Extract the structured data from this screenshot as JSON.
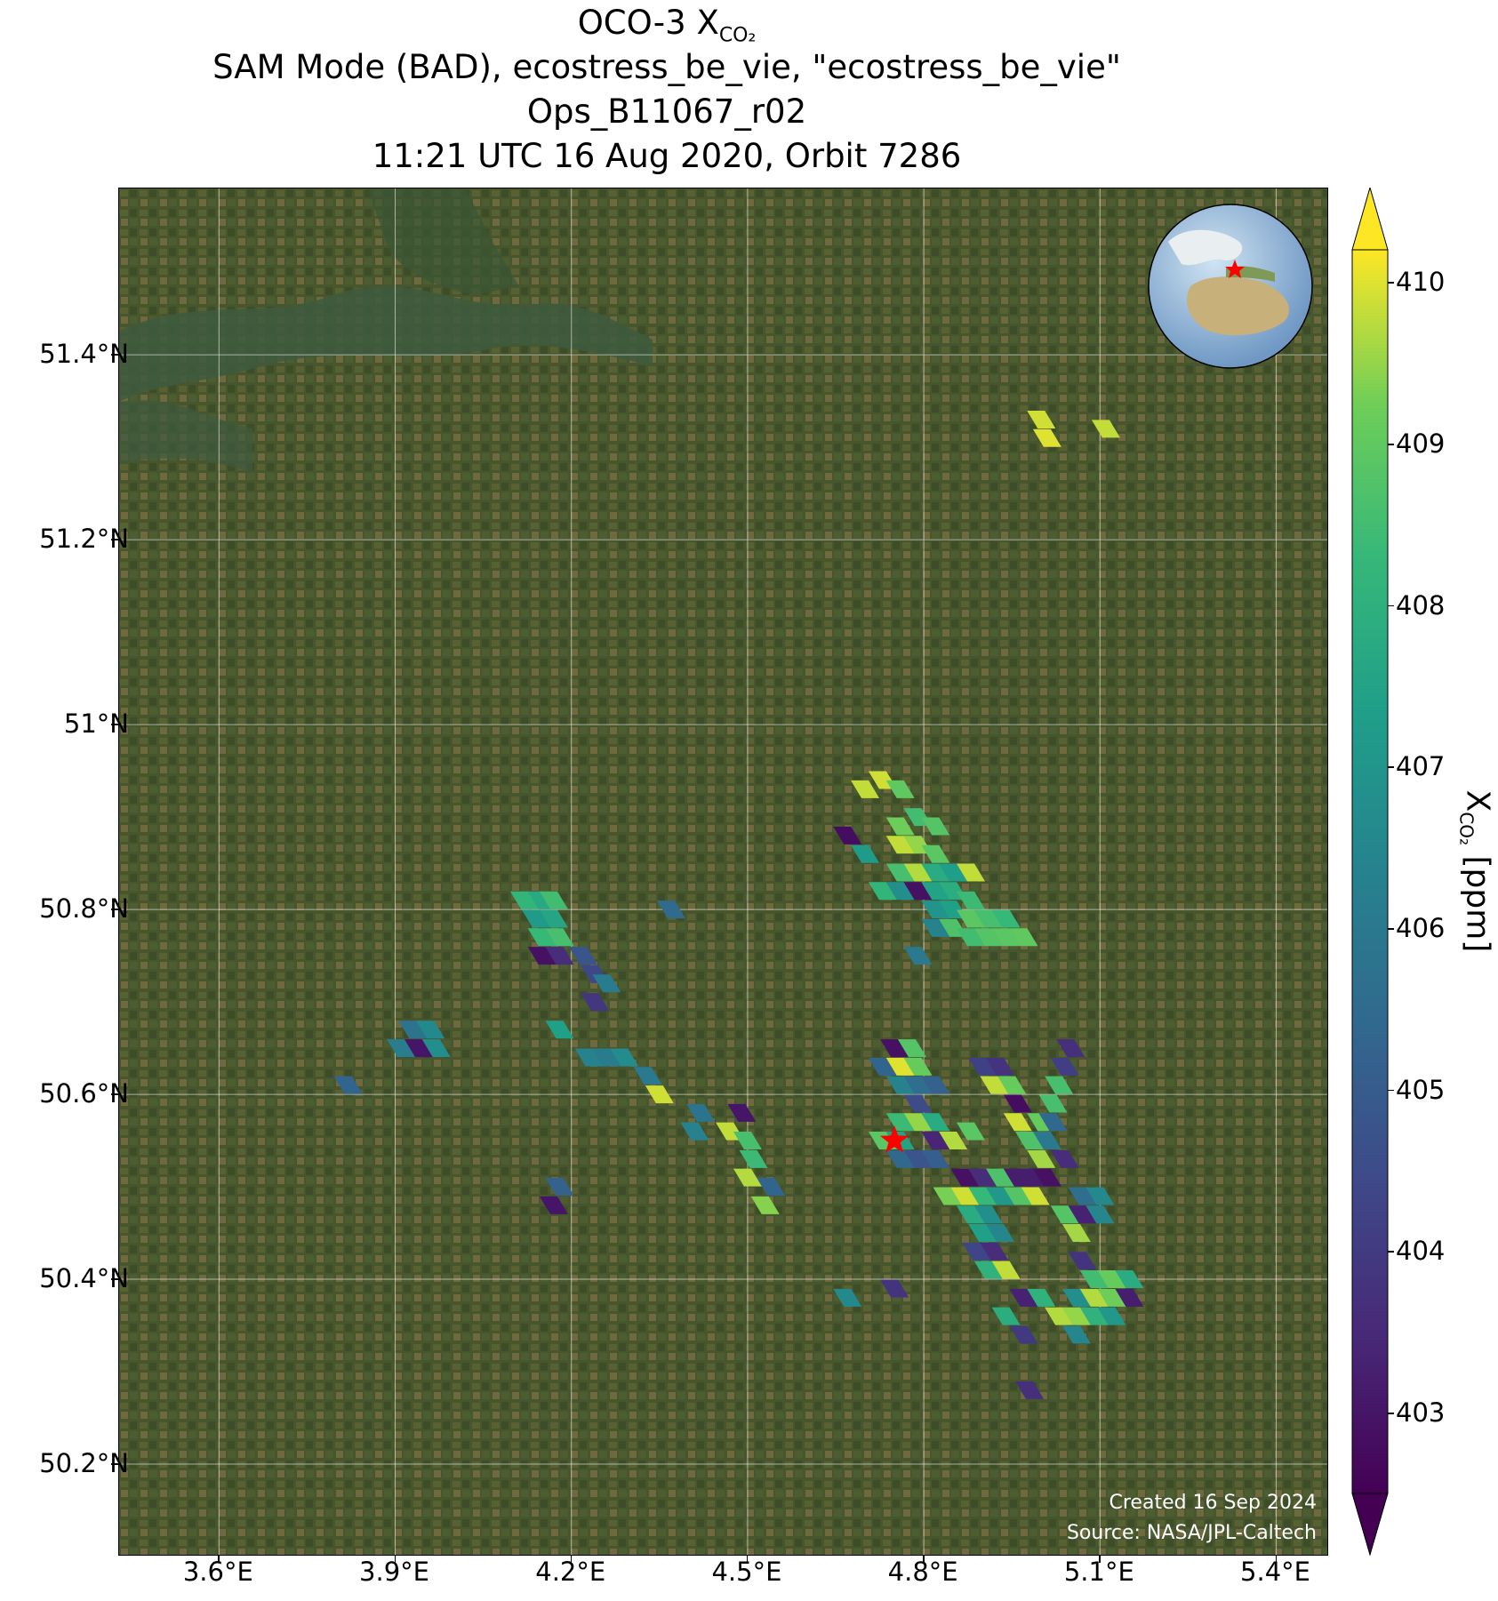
{
  "title": {
    "line1_prefix": "OCO-3 X",
    "line1_sub": "CO₂",
    "line2": "SAM Mode (BAD), ecostress_be_vie, \"ecostress_be_vie\"",
    "line3": "Ops_B11067_r02",
    "line4": "11:21 UTC 16 Aug 2020, Orbit 7286"
  },
  "map": {
    "lon_range": [
      3.43,
      5.49
    ],
    "lat_range": [
      50.1,
      51.58
    ],
    "lon_ticks": [
      3.6,
      3.9,
      4.2,
      4.5,
      4.8,
      5.1,
      5.4
    ],
    "lon_labels": [
      "3.6°E",
      "3.9°E",
      "4.2°E",
      "4.5°E",
      "4.8°E",
      "5.1°E",
      "5.4°E"
    ],
    "lat_ticks": [
      50.2,
      50.4,
      50.6,
      50.8,
      51.0,
      51.2,
      51.4
    ],
    "lat_labels": [
      "50.2°N",
      "50.4°N",
      "50.6°N",
      "50.8°N",
      "51°N",
      "51.2°N",
      "51.4°N"
    ],
    "grid": true,
    "basemap": "satellite imagery",
    "target_marker": {
      "icon": "red-star-icon",
      "lon": 4.75,
      "lat": 50.55,
      "color": "#ff0000"
    },
    "inset_globe": {
      "placement": "top-right",
      "icon": "globe-icon"
    }
  },
  "chart_data": {
    "type": "scatter",
    "variable": "XCO2",
    "units": "ppm",
    "colormap": "viridis",
    "color_range": [
      402.5,
      410.2
    ],
    "points": [
      {
        "lon": 4.73,
        "lat": 50.94,
        "v": 409.9
      },
      {
        "lon": 4.76,
        "lat": 50.93,
        "v": 409.0
      },
      {
        "lon": 4.7,
        "lat": 50.93,
        "v": 409.8
      },
      {
        "lon": 4.79,
        "lat": 50.9,
        "v": 408.5
      },
      {
        "lon": 4.76,
        "lat": 50.89,
        "v": 409.2
      },
      {
        "lon": 4.82,
        "lat": 50.89,
        "v": 408.8
      },
      {
        "lon": 4.67,
        "lat": 50.88,
        "v": 402.8
      },
      {
        "lon": 4.7,
        "lat": 50.86,
        "v": 407.2
      },
      {
        "lon": 4.76,
        "lat": 50.87,
        "v": 409.8
      },
      {
        "lon": 4.79,
        "lat": 50.87,
        "v": 409.5
      },
      {
        "lon": 4.82,
        "lat": 50.86,
        "v": 408.9
      },
      {
        "lon": 4.76,
        "lat": 50.84,
        "v": 408.6
      },
      {
        "lon": 4.79,
        "lat": 50.84,
        "v": 409.7
      },
      {
        "lon": 4.82,
        "lat": 50.84,
        "v": 407.8
      },
      {
        "lon": 4.85,
        "lat": 50.84,
        "v": 407.3
      },
      {
        "lon": 4.88,
        "lat": 50.84,
        "v": 409.8
      },
      {
        "lon": 4.73,
        "lat": 50.82,
        "v": 408.2
      },
      {
        "lon": 4.76,
        "lat": 50.82,
        "v": 406.8
      },
      {
        "lon": 4.79,
        "lat": 50.82,
        "v": 402.9
      },
      {
        "lon": 4.82,
        "lat": 50.82,
        "v": 407.5
      },
      {
        "lon": 4.85,
        "lat": 50.82,
        "v": 407.9
      },
      {
        "lon": 4.88,
        "lat": 50.81,
        "v": 408.4
      },
      {
        "lon": 4.82,
        "lat": 50.8,
        "v": 407.0
      },
      {
        "lon": 4.85,
        "lat": 50.8,
        "v": 407.4
      },
      {
        "lon": 4.88,
        "lat": 50.79,
        "v": 408.9
      },
      {
        "lon": 4.91,
        "lat": 50.79,
        "v": 408.6
      },
      {
        "lon": 4.94,
        "lat": 50.79,
        "v": 408.3
      },
      {
        "lon": 4.82,
        "lat": 50.78,
        "v": 406.4
      },
      {
        "lon": 4.85,
        "lat": 50.78,
        "v": 408.7
      },
      {
        "lon": 4.88,
        "lat": 50.77,
        "v": 408.5
      },
      {
        "lon": 4.91,
        "lat": 50.77,
        "v": 408.8
      },
      {
        "lon": 4.94,
        "lat": 50.77,
        "v": 408.9
      },
      {
        "lon": 4.97,
        "lat": 50.77,
        "v": 409.0
      },
      {
        "lon": 4.79,
        "lat": 50.75,
        "v": 406.0
      },
      {
        "lon": 4.12,
        "lat": 50.81,
        "v": 408.2
      },
      {
        "lon": 4.15,
        "lat": 50.81,
        "v": 407.7
      },
      {
        "lon": 4.17,
        "lat": 50.81,
        "v": 408.5
      },
      {
        "lon": 4.14,
        "lat": 50.79,
        "v": 407.2
      },
      {
        "lon": 4.17,
        "lat": 50.79,
        "v": 407.6
      },
      {
        "lon": 4.15,
        "lat": 50.77,
        "v": 408.3
      },
      {
        "lon": 4.18,
        "lat": 50.77,
        "v": 408.6
      },
      {
        "lon": 4.15,
        "lat": 50.75,
        "v": 402.9
      },
      {
        "lon": 4.18,
        "lat": 50.75,
        "v": 403.6
      },
      {
        "lon": 4.22,
        "lat": 50.75,
        "v": 404.8
      },
      {
        "lon": 4.24,
        "lat": 50.73,
        "v": 404.4
      },
      {
        "lon": 4.26,
        "lat": 50.72,
        "v": 406.1
      },
      {
        "lon": 4.24,
        "lat": 50.7,
        "v": 403.9
      },
      {
        "lon": 4.18,
        "lat": 50.67,
        "v": 407.4
      },
      {
        "lon": 4.37,
        "lat": 50.8,
        "v": 405.5
      },
      {
        "lon": 3.93,
        "lat": 50.67,
        "v": 405.8
      },
      {
        "lon": 3.96,
        "lat": 50.67,
        "v": 406.6
      },
      {
        "lon": 3.91,
        "lat": 50.65,
        "v": 406.2
      },
      {
        "lon": 3.94,
        "lat": 50.65,
        "v": 403.0
      },
      {
        "lon": 3.97,
        "lat": 50.65,
        "v": 406.8
      },
      {
        "lon": 3.82,
        "lat": 50.61,
        "v": 405.3
      },
      {
        "lon": 4.23,
        "lat": 50.64,
        "v": 406.4
      },
      {
        "lon": 4.26,
        "lat": 50.64,
        "v": 406.1
      },
      {
        "lon": 4.29,
        "lat": 50.64,
        "v": 406.7
      },
      {
        "lon": 4.33,
        "lat": 50.62,
        "v": 406.0
      },
      {
        "lon": 4.35,
        "lat": 50.6,
        "v": 409.9
      },
      {
        "lon": 4.42,
        "lat": 50.58,
        "v": 405.8
      },
      {
        "lon": 4.41,
        "lat": 50.56,
        "v": 406.3
      },
      {
        "lon": 4.49,
        "lat": 50.58,
        "v": 403.0
      },
      {
        "lon": 4.47,
        "lat": 50.56,
        "v": 409.8
      },
      {
        "lon": 4.5,
        "lat": 50.55,
        "v": 408.6
      },
      {
        "lon": 4.51,
        "lat": 50.53,
        "v": 408.4
      },
      {
        "lon": 4.5,
        "lat": 50.51,
        "v": 409.7
      },
      {
        "lon": 4.54,
        "lat": 50.5,
        "v": 405.3
      },
      {
        "lon": 4.53,
        "lat": 50.48,
        "v": 409.4
      },
      {
        "lon": 4.18,
        "lat": 50.5,
        "v": 405.2
      },
      {
        "lon": 4.17,
        "lat": 50.48,
        "v": 403.0
      },
      {
        "lon": 4.75,
        "lat": 50.65,
        "v": 402.9
      },
      {
        "lon": 4.78,
        "lat": 50.65,
        "v": 408.8
      },
      {
        "lon": 4.73,
        "lat": 50.63,
        "v": 405.3
      },
      {
        "lon": 4.76,
        "lat": 50.63,
        "v": 410.0
      },
      {
        "lon": 4.79,
        "lat": 50.63,
        "v": 409.1
      },
      {
        "lon": 4.76,
        "lat": 50.61,
        "v": 406.4
      },
      {
        "lon": 4.79,
        "lat": 50.61,
        "v": 405.6
      },
      {
        "lon": 4.82,
        "lat": 50.61,
        "v": 405.2
      },
      {
        "lon": 4.79,
        "lat": 50.59,
        "v": 404.5
      },
      {
        "lon": 4.79,
        "lat": 50.57,
        "v": 409.5
      },
      {
        "lon": 4.76,
        "lat": 50.57,
        "v": 408.4
      },
      {
        "lon": 4.82,
        "lat": 50.57,
        "v": 407.8
      },
      {
        "lon": 4.73,
        "lat": 50.55,
        "v": 408.9
      },
      {
        "lon": 4.76,
        "lat": 50.55,
        "v": 407.5
      },
      {
        "lon": 4.82,
        "lat": 50.55,
        "v": 403.4
      },
      {
        "lon": 4.85,
        "lat": 50.55,
        "v": 409.7
      },
      {
        "lon": 4.79,
        "lat": 50.53,
        "v": 404.8
      },
      {
        "lon": 4.76,
        "lat": 50.53,
        "v": 405.4
      },
      {
        "lon": 4.82,
        "lat": 50.53,
        "v": 405.1
      },
      {
        "lon": 4.88,
        "lat": 50.56,
        "v": 408.9
      },
      {
        "lon": 4.87,
        "lat": 50.51,
        "v": 402.9
      },
      {
        "lon": 4.9,
        "lat": 50.51,
        "v": 403.6
      },
      {
        "lon": 4.93,
        "lat": 50.51,
        "v": 408.7
      },
      {
        "lon": 4.96,
        "lat": 50.51,
        "v": 403.2
      },
      {
        "lon": 4.84,
        "lat": 50.49,
        "v": 409.3
      },
      {
        "lon": 4.87,
        "lat": 50.49,
        "v": 409.9
      },
      {
        "lon": 4.9,
        "lat": 50.49,
        "v": 408.3
      },
      {
        "lon": 4.93,
        "lat": 50.49,
        "v": 407.1
      },
      {
        "lon": 4.96,
        "lat": 50.49,
        "v": 408.8
      },
      {
        "lon": 4.88,
        "lat": 50.47,
        "v": 407.8
      },
      {
        "lon": 4.91,
        "lat": 50.47,
        "v": 406.8
      },
      {
        "lon": 4.9,
        "lat": 50.45,
        "v": 407.4
      },
      {
        "lon": 4.93,
        "lat": 50.45,
        "v": 406.5
      },
      {
        "lon": 4.89,
        "lat": 50.43,
        "v": 404.3
      },
      {
        "lon": 4.92,
        "lat": 50.43,
        "v": 403.6
      },
      {
        "lon": 4.91,
        "lat": 50.41,
        "v": 408.1
      },
      {
        "lon": 4.94,
        "lat": 50.41,
        "v": 409.8
      },
      {
        "lon": 4.75,
        "lat": 50.39,
        "v": 403.8
      },
      {
        "lon": 4.67,
        "lat": 50.38,
        "v": 406.6
      },
      {
        "lon": 4.9,
        "lat": 50.63,
        "v": 404.2
      },
      {
        "lon": 4.93,
        "lat": 50.63,
        "v": 403.8
      },
      {
        "lon": 4.92,
        "lat": 50.61,
        "v": 409.8
      },
      {
        "lon": 4.95,
        "lat": 50.61,
        "v": 409.1
      },
      {
        "lon": 4.96,
        "lat": 50.59,
        "v": 402.8
      },
      {
        "lon": 4.96,
        "lat": 50.57,
        "v": 409.9
      },
      {
        "lon": 4.98,
        "lat": 50.55,
        "v": 408.7
      },
      {
        "lon": 5.02,
        "lat": 50.59,
        "v": 408.6
      },
      {
        "lon": 5.0,
        "lat": 50.57,
        "v": 409.1
      },
      {
        "lon": 5.05,
        "lat": 50.65,
        "v": 403.7
      },
      {
        "lon": 5.04,
        "lat": 50.63,
        "v": 404.1
      },
      {
        "lon": 5.03,
        "lat": 50.61,
        "v": 408.6
      },
      {
        "lon": 5.02,
        "lat": 50.57,
        "v": 405.4
      },
      {
        "lon": 5.01,
        "lat": 50.55,
        "v": 406.0
      },
      {
        "lon": 5.0,
        "lat": 50.53,
        "v": 409.6
      },
      {
        "lon": 4.98,
        "lat": 50.51,
        "v": 403.2
      },
      {
        "lon": 5.01,
        "lat": 50.51,
        "v": 402.9
      },
      {
        "lon": 4.99,
        "lat": 50.49,
        "v": 409.9
      },
      {
        "lon": 5.04,
        "lat": 50.53,
        "v": 403.6
      },
      {
        "lon": 5.07,
        "lat": 50.49,
        "v": 405.6
      },
      {
        "lon": 5.1,
        "lat": 50.49,
        "v": 406.6
      },
      {
        "lon": 5.04,
        "lat": 50.47,
        "v": 408.8
      },
      {
        "lon": 5.07,
        "lat": 50.47,
        "v": 403.3
      },
      {
        "lon": 5.1,
        "lat": 50.47,
        "v": 406.5
      },
      {
        "lon": 5.06,
        "lat": 50.45,
        "v": 409.6
      },
      {
        "lon": 5.07,
        "lat": 50.42,
        "v": 403.8
      },
      {
        "lon": 5.09,
        "lat": 50.4,
        "v": 408.5
      },
      {
        "lon": 5.12,
        "lat": 50.4,
        "v": 409.1
      },
      {
        "lon": 5.15,
        "lat": 50.4,
        "v": 407.8
      },
      {
        "lon": 5.06,
        "lat": 50.38,
        "v": 406.8
      },
      {
        "lon": 5.09,
        "lat": 50.38,
        "v": 409.7
      },
      {
        "lon": 5.12,
        "lat": 50.38,
        "v": 409.2
      },
      {
        "lon": 5.15,
        "lat": 50.38,
        "v": 403.2
      },
      {
        "lon": 5.03,
        "lat": 50.36,
        "v": 409.7
      },
      {
        "lon": 5.06,
        "lat": 50.36,
        "v": 409.5
      },
      {
        "lon": 5.09,
        "lat": 50.36,
        "v": 408.1
      },
      {
        "lon": 5.12,
        "lat": 50.36,
        "v": 407.1
      },
      {
        "lon": 5.06,
        "lat": 50.34,
        "v": 406.5
      },
      {
        "lon": 4.97,
        "lat": 50.38,
        "v": 403.3
      },
      {
        "lon": 5.0,
        "lat": 50.38,
        "v": 408.1
      },
      {
        "lon": 4.94,
        "lat": 50.36,
        "v": 407.9
      },
      {
        "lon": 4.97,
        "lat": 50.34,
        "v": 404.0
      },
      {
        "lon": 4.98,
        "lat": 50.28,
        "v": 403.7
      },
      {
        "lon": 5.0,
        "lat": 51.33,
        "v": 409.9
      },
      {
        "lon": 5.01,
        "lat": 51.31,
        "v": 410.0
      },
      {
        "lon": 5.11,
        "lat": 51.32,
        "v": 409.8
      }
    ]
  },
  "colorbar": {
    "ticks": [
      403,
      404,
      405,
      406,
      407,
      408,
      409,
      410
    ],
    "label_prefix": "X",
    "label_sub": "CO₂",
    "label_suffix": " [ppm]"
  },
  "credits": {
    "line1": "Created 16 Sep 2024",
    "line2": "Source: NASA/JPL-Caltech"
  }
}
